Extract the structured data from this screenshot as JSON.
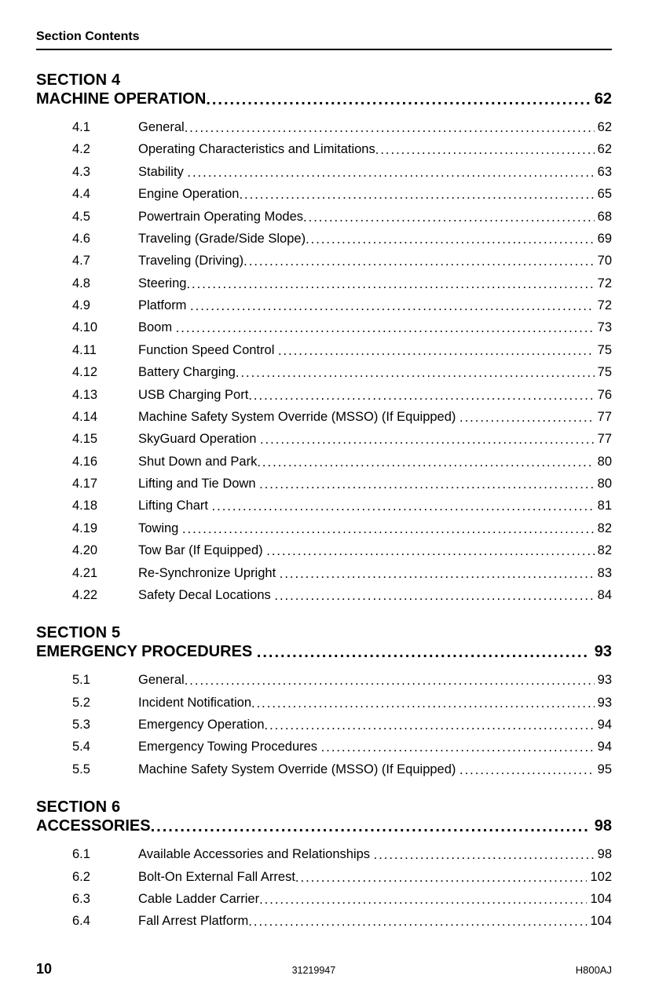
{
  "running_head": "Section Contents",
  "sections": [
    {
      "label": "SECTION 4",
      "title": "MACHINE OPERATION",
      "page": "62",
      "entries": [
        {
          "num": "4.1",
          "title": "General",
          "page": "62"
        },
        {
          "num": "4.2",
          "title": "Operating Characteristics and Limitations",
          "page": "62"
        },
        {
          "num": "4.3",
          "title": "Stability ",
          "page": "63"
        },
        {
          "num": "4.4",
          "title": "Engine Operation",
          "page": "65"
        },
        {
          "num": "4.5",
          "title": "Powertrain Operating Modes",
          "page": "68"
        },
        {
          "num": "4.6",
          "title": "Traveling (Grade/Side Slope)",
          "page": "69"
        },
        {
          "num": "4.7",
          "title": "Traveling (Driving)",
          "page": "70"
        },
        {
          "num": "4.8",
          "title": "Steering",
          "page": "72"
        },
        {
          "num": "4.9",
          "title": "Platform ",
          "page": "72"
        },
        {
          "num": "4.10",
          "title": "Boom ",
          "page": "73"
        },
        {
          "num": "4.11",
          "title": "Function Speed Control ",
          "page": "75"
        },
        {
          "num": "4.12",
          "title": "Battery Charging",
          "page": "75"
        },
        {
          "num": "4.13",
          "title": "USB Charging Port",
          "page": "76"
        },
        {
          "num": "4.14",
          "title": "Machine Safety System Override (MSSO) (If Equipped) ",
          "page": "77"
        },
        {
          "num": "4.15",
          "title": "SkyGuard Operation ",
          "page": "77"
        },
        {
          "num": "4.16",
          "title": "Shut Down and Park",
          "page": "80"
        },
        {
          "num": "4.17",
          "title": "Lifting and Tie Down ",
          "page": "80"
        },
        {
          "num": "4.18",
          "title": "Lifting Chart ",
          "page": "81"
        },
        {
          "num": "4.19",
          "title": "Towing ",
          "page": "82"
        },
        {
          "num": "4.20",
          "title": "Tow Bar (If Equipped) ",
          "page": "82"
        },
        {
          "num": "4.21",
          "title": "Re-Synchronize Upright ",
          "page": "83"
        },
        {
          "num": "4.22",
          "title": "Safety Decal Locations ",
          "page": "84"
        }
      ]
    },
    {
      "label": "SECTION 5",
      "title": "EMERGENCY PROCEDURES ",
      "page": "93",
      "entries": [
        {
          "num": "5.1",
          "title": "General",
          "page": "93"
        },
        {
          "num": "5.2",
          "title": "Incident Notification",
          "page": "93"
        },
        {
          "num": "5.3",
          "title": "Emergency Operation",
          "page": "94"
        },
        {
          "num": "5.4",
          "title": "Emergency Towing Procedures ",
          "page": "94"
        },
        {
          "num": "5.5",
          "title": "Machine Safety System Override (MSSO) (If Equipped) ",
          "page": "95"
        }
      ]
    },
    {
      "label": "SECTION 6",
      "title": "ACCESSORIES",
      "page": "98",
      "entries": [
        {
          "num": "6.1",
          "title": "Available Accessories and Relationships ",
          "page": "98"
        },
        {
          "num": "6.2",
          "title": "Bolt-On External Fall Arrest",
          "page": " 102"
        },
        {
          "num": "6.3",
          "title": "Cable Ladder Carrier",
          "page": " 104"
        },
        {
          "num": "6.4",
          "title": "Fall Arrest Platform",
          "page": " 104"
        }
      ]
    }
  ],
  "footer": {
    "page_number": "10",
    "doc_number": "31219947",
    "model": "H800AJ"
  }
}
